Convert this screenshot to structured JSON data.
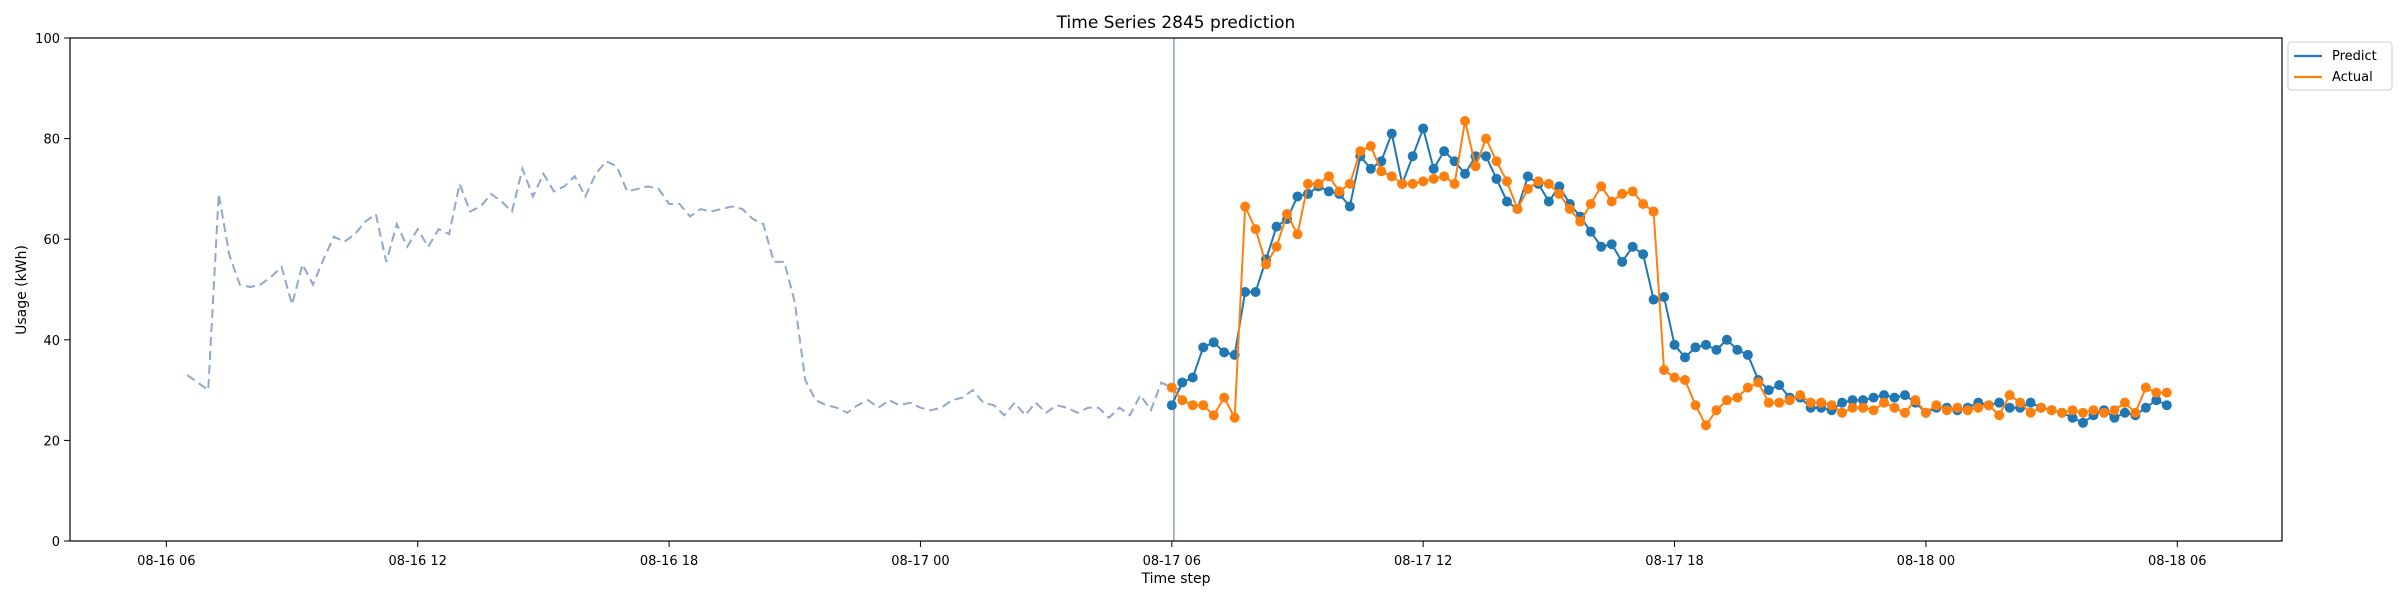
{
  "chart_data": {
    "type": "line",
    "title": "Time Series 2845 prediction",
    "xlabel": "Time step",
    "ylabel": "Usage (kWh)",
    "ylim": [
      0,
      100
    ],
    "yticks": [
      0,
      20,
      40,
      60,
      80,
      100
    ],
    "x_unit_hours": 0.5,
    "xticks": [
      {
        "label": "08-16 06",
        "hour": 0
      },
      {
        "label": "08-16 12",
        "hour": 6
      },
      {
        "label": "08-16 18",
        "hour": 12
      },
      {
        "label": "08-17 00",
        "hour": 18
      },
      {
        "label": "08-17 06",
        "hour": 24
      },
      {
        "label": "08-17 12",
        "hour": 30
      },
      {
        "label": "08-17 18",
        "hour": 36
      },
      {
        "label": "08-18 00",
        "hour": 42
      },
      {
        "label": "08-18 06",
        "hour": 48
      }
    ],
    "xlim_hours": [
      -2.3,
      50.5
    ],
    "forecast_start_hour": 24.05,
    "legend_position": "top-right outside",
    "grid": false,
    "history": {
      "start_hour": 0.5,
      "step_hours": 0.25,
      "style": "dashed",
      "color": "#8fa8cc",
      "values": [
        33,
        31.5,
        30,
        69,
        57,
        51,
        50.5,
        51,
        52.5,
        54.5,
        47,
        55,
        51,
        56,
        60.5,
        59.5,
        61,
        63.5,
        65,
        55.5,
        63,
        58.5,
        62,
        58.5,
        62,
        61,
        71,
        65.5,
        66.5,
        69,
        67.5,
        65.5,
        74,
        68.5,
        73,
        69.5,
        70.5,
        72.5,
        68.5,
        73,
        75.5,
        74.5,
        69.5,
        70,
        70.5,
        70,
        67,
        67,
        64.5,
        66,
        65.5,
        66,
        66.5,
        66,
        64,
        63,
        55.5,
        55.5,
        47.5,
        32,
        28,
        27,
        26.5,
        25.5,
        27,
        28,
        26.5,
        28,
        27,
        27.5,
        26.5,
        26,
        26.5,
        28,
        28.5,
        30,
        27.5,
        27,
        25,
        27.5,
        25,
        27.5,
        25.5,
        27,
        26.5,
        25.5,
        26.5,
        26.5,
        24.5,
        26.5,
        25,
        29,
        26,
        31.5,
        30.5,
        30
      ]
    },
    "forecast": {
      "start_hour": 24,
      "step_hours": 0.25
    },
    "series": [
      {
        "name": "Predict",
        "color": "#1f77b4",
        "values": [
          27,
          31.5,
          32.5,
          38.5,
          39.5,
          37.5,
          37,
          49.5,
          49.5,
          56,
          62.5,
          64,
          68.5,
          69,
          70.5,
          69.5,
          69,
          66.5,
          76.5,
          74,
          75.5,
          81,
          71,
          76.5,
          82,
          74,
          77.5,
          75.5,
          73,
          76.5,
          76.5,
          72,
          67.5,
          66,
          72.5,
          71,
          67.5,
          70.5,
          67,
          64.5,
          61.5,
          58.5,
          59,
          55.5,
          58.5,
          57,
          48,
          48.5,
          39,
          36.5,
          38.5,
          39,
          38,
          40,
          38,
          37,
          32,
          30,
          31,
          28.5,
          28.5,
          26.5,
          26.5,
          26,
          27.5,
          28,
          28,
          28.5,
          29,
          28.5,
          29,
          27.5,
          25.5,
          26.5,
          26.5,
          26,
          26.5,
          27.5,
          27,
          27.5,
          26.5,
          26.5,
          27.5,
          26.5,
          26,
          25.5,
          24.5,
          23.5,
          25,
          26,
          24.5,
          25.5,
          25,
          26.5,
          28,
          27
        ]
      },
      {
        "name": "Actual",
        "color": "#ff7f0e",
        "values": [
          30.5,
          28,
          27,
          27,
          25,
          28.5,
          24.5,
          66.5,
          62,
          55,
          58.5,
          65,
          61,
          71,
          71,
          72.5,
          69.5,
          71,
          77.5,
          78.5,
          73.5,
          72.5,
          71,
          71,
          71.5,
          72,
          72.5,
          71,
          83.5,
          74.5,
          80,
          75.5,
          71.5,
          66,
          70,
          71.5,
          71,
          69,
          66,
          63.5,
          67,
          70.5,
          67.5,
          69,
          69.5,
          67,
          65.5,
          34,
          32.5,
          32,
          27,
          23,
          26,
          28,
          28.5,
          30.5,
          31.5,
          27.5,
          27.5,
          28,
          29,
          27.5,
          27.5,
          27,
          25.5,
          26.5,
          26.5,
          26,
          27.5,
          26.5,
          25.5,
          28,
          25.5,
          27,
          26,
          26.5,
          26,
          26.5,
          27,
          25,
          29,
          27.5,
          25.5,
          26.5,
          26,
          25.5,
          26,
          25.5,
          26,
          25.5,
          26,
          27.5,
          25.5,
          30.5,
          29.5,
          29.5
        ]
      }
    ]
  }
}
